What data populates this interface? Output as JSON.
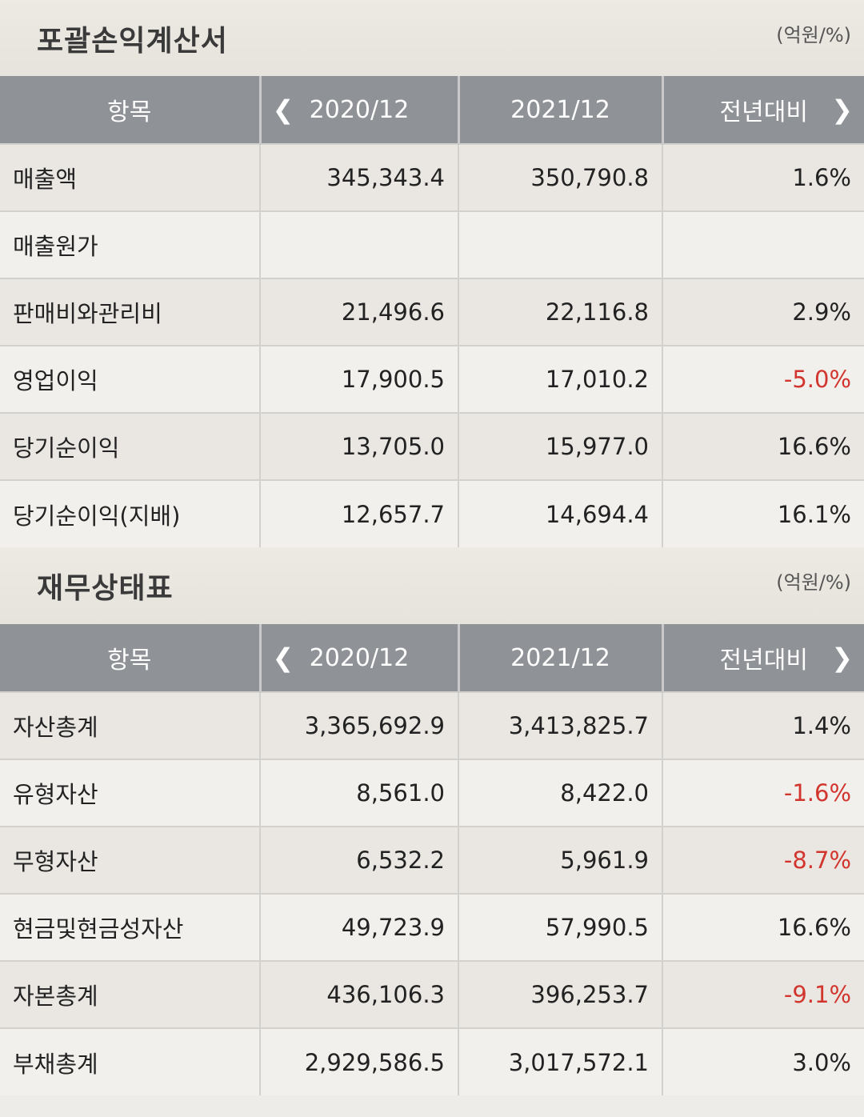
{
  "income": {
    "title": "포괄손익계산서",
    "unit": "(억원/%)",
    "headers": [
      "항목",
      "2020/12",
      "2021/12",
      "전년대비"
    ],
    "rows": [
      {
        "label": "매출액",
        "v2020": "345,343.4",
        "v2021": "350,790.8",
        "yoy": "1.6%"
      },
      {
        "label": "매출원가",
        "v2020": "",
        "v2021": "",
        "yoy": ""
      },
      {
        "label": "판매비와관리비",
        "v2020": "21,496.6",
        "v2021": "22,116.8",
        "yoy": "2.9%"
      },
      {
        "label": "영업이익",
        "v2020": "17,900.5",
        "v2021": "17,010.2",
        "yoy": "-5.0%"
      },
      {
        "label": "당기순이익",
        "v2020": "13,705.0",
        "v2021": "15,977.0",
        "yoy": "16.6%"
      },
      {
        "label": "당기순이익(지배)",
        "v2020": "12,657.7",
        "v2021": "14,694.4",
        "yoy": "16.1%"
      }
    ]
  },
  "balance": {
    "title": "재무상태표",
    "unit": "(억원/%)",
    "headers": [
      "항목",
      "2020/12",
      "2021/12",
      "전년대비"
    ],
    "rows": [
      {
        "label": "자산총계",
        "v2020": "3,365,692.9",
        "v2021": "3,413,825.7",
        "yoy": "1.4%"
      },
      {
        "label": "유형자산",
        "v2020": "8,561.0",
        "v2021": "8,422.0",
        "yoy": "-1.6%"
      },
      {
        "label": "무형자산",
        "v2020": "6,532.2",
        "v2021": "5,961.9",
        "yoy": "-8.7%"
      },
      {
        "label": "현금및현금성자산",
        "v2020": "49,723.9",
        "v2021": "57,990.5",
        "yoy": "16.6%"
      },
      {
        "label": "자본총계",
        "v2020": "436,106.3",
        "v2021": "396,253.7",
        "yoy": "-9.1%"
      },
      {
        "label": "부채총계",
        "v2020": "2,929,586.5",
        "v2021": "3,017,572.1",
        "yoy": "3.0%"
      }
    ]
  },
  "colors": {
    "header_bg": "#8f9296",
    "negative": "#d2352e",
    "section_bg": "#e9e5df"
  },
  "icons": {
    "prev": "chevron-left-icon",
    "next": "chevron-right-icon"
  }
}
